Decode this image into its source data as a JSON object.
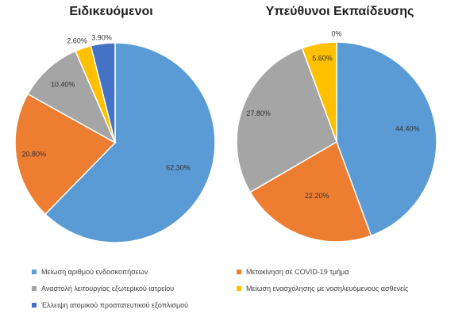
{
  "colors": {
    "blue": "#5b9bd5",
    "orange": "#ed7d31",
    "gray": "#a5a5a5",
    "yellow": "#ffc000",
    "darkblue": "#4472c4"
  },
  "legend": [
    {
      "label": "Μείωση αριθμού ενδοσκοπήσεων",
      "color": "#5b9bd5"
    },
    {
      "label": "Μετακίνηση σε COVID-19 τμήμα",
      "color": "#ed7d31"
    },
    {
      "label": "Αναστολή λειτουργίας εξωτερικού ιατρείου",
      "color": "#a5a5a5"
    },
    {
      "label": "Μείωση ενασχόλησης με νοσηλευόμενους ασθενείς",
      "color": "#ffc000"
    },
    {
      "label": "Έλλειψη ατομικού προστατευτικού εξοπλισμού",
      "color": "#4472c4"
    }
  ],
  "chart_data": [
    {
      "type": "pie",
      "title": "Ειδικευόμενοι",
      "categories": [
        "Μείωση αριθμού ενδοσκοπήσεων",
        "Μετακίνηση σε COVID-19 τμήμα",
        "Αναστολή λειτουργίας εξωτερικού ιατρείου",
        "Μείωση ενασχόλησης με νοσηλευόμενους ασθενείς",
        "Έλλειψη ατομικού προστατευτικού εξοπλισμού"
      ],
      "values": [
        62.3,
        20.8,
        10.4,
        2.6,
        3.9
      ],
      "labels": [
        "62.30%",
        "20.80%",
        "10.40%",
        "2.60%",
        "3.90%"
      ],
      "legend": "bottom"
    },
    {
      "type": "pie",
      "title": "Υπεύθυνοι Εκπαίδευσης",
      "categories": [
        "Μείωση αριθμού ενδοσκοπήσεων",
        "Μετακίνηση σε COVID-19 τμήμα",
        "Αναστολή λειτουργίας εξωτερικού ιατρείου",
        "Μείωση ενασχόλησης με νοσηλευόμενους ασθενείς",
        "Έλλειψη ατομικού προστατευτικού εξοπλισμού"
      ],
      "values": [
        44.4,
        22.2,
        27.8,
        5.6,
        0
      ],
      "labels": [
        "44.40%",
        "22.20%",
        "27.80%",
        "5.60%",
        "0%"
      ],
      "legend": "bottom"
    }
  ]
}
